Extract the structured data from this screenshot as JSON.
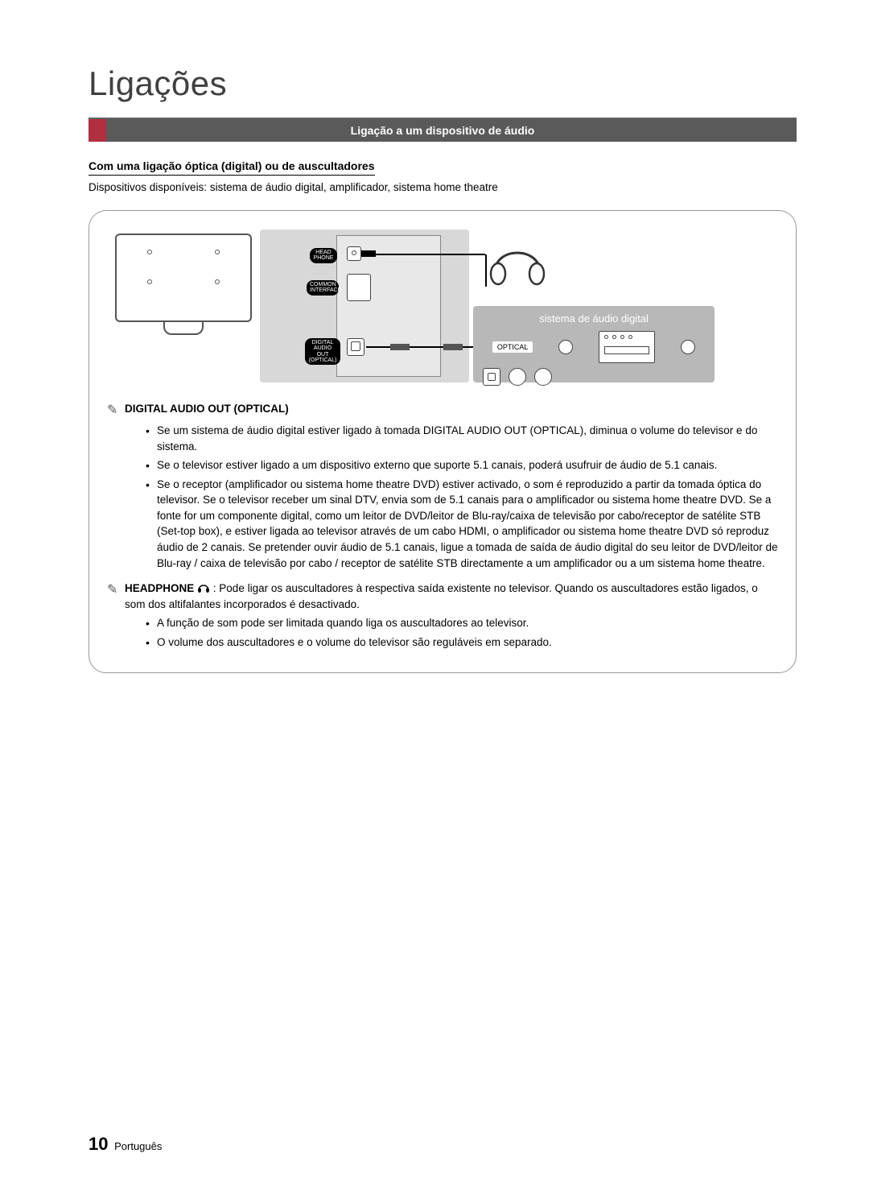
{
  "page": {
    "title": "Ligações",
    "section_banner": "Ligação a um dispositivo de áudio",
    "subheading": "Com uma ligação óptica (digital) ou de auscultadores",
    "devices_line": "Dispositivos disponíveis: sistema de áudio digital, amplificador, sistema home theatre",
    "page_number": "10",
    "language": "Português"
  },
  "diagram": {
    "port_labels": {
      "headphone": "HEAD\nPHONE",
      "common_interface": "COMMON\nINTERFACE",
      "digital_audio": "DIGITAL\nAUDIO OUT\n(OPTICAL)"
    },
    "audio_system_label": "sistema de áudio digital",
    "optical_label": "OPTICAL"
  },
  "notes": {
    "digital_heading": "DIGITAL AUDIO OUT (OPTICAL)",
    "digital_bullets": [
      "Se um sistema de áudio digital estiver ligado à tomada DIGITAL AUDIO OUT (OPTICAL), diminua o volume do televisor e do sistema.",
      "Se o televisor estiver ligado a um dispositivo externo que suporte 5.1 canais, poderá usufruir de áudio de 5.1 canais.",
      "Se o receptor (amplificador ou sistema home theatre DVD) estiver activado, o som é reproduzido a partir da tomada óptica do televisor. Se o televisor receber um sinal DTV, envia som de 5.1 canais para o amplificador ou sistema home theatre DVD. Se a fonte for um componente digital, como um leitor de DVD/leitor de Blu-ray/caixa de televisão por cabo/receptor de satélite STB (Set-top box), e estiver ligada ao televisor através de um cabo HDMI, o amplificador ou sistema home theatre DVD só reproduz áudio de 2 canais. Se pretender ouvir áudio de 5.1 canais, ligue a tomada de saída de áudio digital do seu leitor de DVD/leitor de Blu-ray / caixa de televisão por cabo / receptor de satélite STB directamente a um amplificador ou a um sistema home theatre."
    ],
    "headphone_heading": "HEADPHONE",
    "headphone_text": ": Pode ligar os auscultadores à respectiva saída existente no televisor. Quando os auscultadores estão ligados, o som dos altifalantes incorporados é desactivado.",
    "headphone_bullets": [
      "A função de som pode ser limitada quando liga os auscultadores ao televisor.",
      "O volume dos auscultadores e o volume do televisor são reguláveis em separado."
    ]
  },
  "colors": {
    "title": "#404040",
    "banner_bg": "#5a5a5a",
    "banner_accent": "#b03040",
    "diagram_panel": "#d8d8d8",
    "audio_box": "#b8b8b8"
  }
}
